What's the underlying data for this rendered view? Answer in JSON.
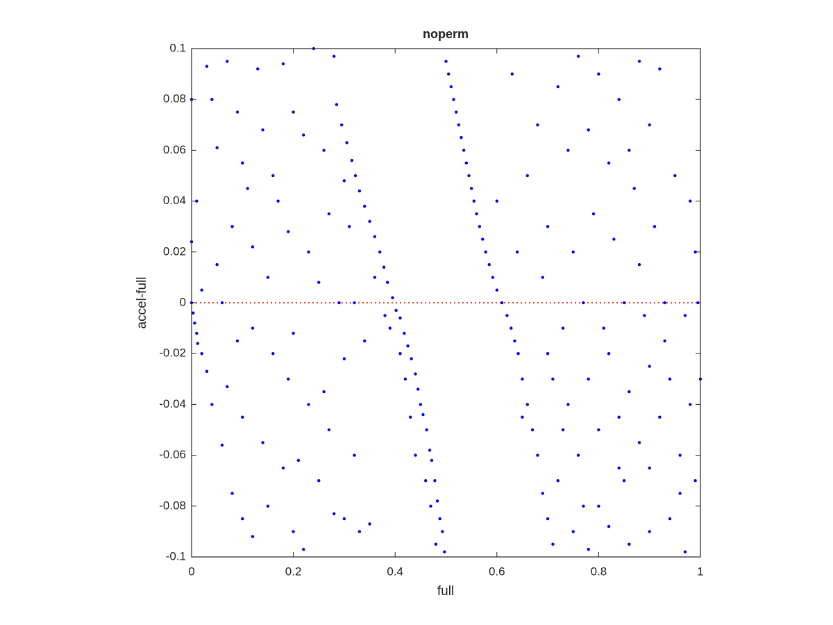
{
  "chart_data": {
    "type": "scatter",
    "title": "noperm",
    "xlabel": "full",
    "ylabel": "accel-full",
    "color": "#0000ee",
    "reference_line": {
      "y": 0,
      "color": "#e8402c"
    },
    "xlim": [
      0,
      1
    ],
    "ylim": [
      -0.1,
      0.1
    ],
    "xticks": [
      0,
      0.2,
      0.4,
      0.6,
      0.8,
      1
    ],
    "yticks": [
      -0.1,
      -0.08,
      -0.06,
      -0.04,
      -0.02,
      0,
      0.02,
      0.04,
      0.06,
      0.08,
      0.1
    ],
    "x": [
      0.497,
      0.493,
      0.488,
      0.483,
      0.478,
      0.472,
      0.468,
      0.462,
      0.455,
      0.45,
      0.445,
      0.44,
      0.432,
      0.425,
      0.418,
      0.41,
      0.402,
      0.395,
      0.385,
      0.378,
      0.37,
      0.36,
      0.35,
      0.34,
      0.33,
      0.322,
      0.315,
      0.305,
      0.295,
      0.285,
      0.48,
      0.47,
      0.46,
      0.44,
      0.43,
      0.42,
      0.41,
      0.39,
      0.38,
      0.36,
      0.02,
      0.03,
      0.04,
      0.06,
      0.08,
      0.1,
      0.12,
      0.15,
      0.18,
      0.2,
      0.22,
      0.25,
      0.28,
      0.3,
      0.33,
      0.35,
      0.32,
      0.27,
      0.23,
      0.19,
      0.16,
      0.12,
      0.09,
      0.07,
      0.1,
      0.14,
      0.21,
      0.26,
      0.3,
      0.34,
      0.01,
      0.03,
      0.04,
      0.05,
      0.07,
      0.09,
      0.11,
      0.13,
      0.16,
      0.18,
      0.2,
      0.22,
      0.24,
      0.26,
      0.28,
      0.3,
      0.31,
      0.27,
      0.23,
      0.19,
      0.15,
      0.12,
      0.08,
      0.05,
      0.02,
      0.06,
      0.1,
      0.14,
      0.17,
      0.25,
      0,
      0.003,
      0.006,
      0.01,
      0,
      0,
      0.012,
      0.29,
      0.32,
      0.2,
      0.5,
      0.505,
      0.51,
      0.515,
      0.52,
      0.525,
      0.53,
      0.535,
      0.54,
      0.545,
      0.55,
      0.555,
      0.56,
      0.566,
      0.572,
      0.578,
      0.585,
      0.592,
      0.6,
      0.61,
      0.62,
      0.628,
      0.635,
      0.642,
      0.65,
      0.66,
      0.67,
      0.68,
      0.69,
      0.7,
      0.71,
      0.75,
      0.78,
      0.82,
      0.86,
      0.9,
      0.94,
      0.97,
      0.99,
      0.72,
      0.76,
      0.8,
      0.84,
      0.88,
      0.92,
      0.96,
      0.74,
      0.78,
      0.82,
      0.86,
      0.9,
      0.94,
      0.98,
      1,
      0.7,
      0.73,
      0.77,
      0.81,
      0.85,
      0.89,
      0.93,
      0.97,
      0.995,
      0.99,
      0.98,
      0.95,
      0.91,
      0.87,
      0.83,
      0.79,
      0.75,
      0.7,
      0.66,
      0.68,
      0.72,
      0.76,
      0.8,
      0.84,
      0.88,
      0.92,
      0.9,
      0.86,
      0.82,
      0.78,
      0.74,
      0.63,
      0.6,
      0.64,
      0.69,
      0.73,
      0.8,
      0.84,
      0.9,
      0.96,
      0.85,
      0.77,
      0.93,
      0.65,
      0.71,
      0.88
    ],
    "y": [
      -0.098,
      -0.09,
      -0.085,
      -0.078,
      -0.07,
      -0.062,
      -0.058,
      -0.05,
      -0.044,
      -0.04,
      -0.034,
      -0.028,
      -0.022,
      -0.017,
      -0.012,
      -0.006,
      -0.003,
      0.002,
      0.008,
      0.014,
      0.02,
      0.026,
      0.032,
      0.038,
      0.044,
      0.05,
      0.056,
      0.063,
      0.07,
      0.078,
      -0.095,
      -0.08,
      -0.07,
      -0.06,
      -0.045,
      -0.03,
      -0.02,
      -0.01,
      -0.005,
      0.01,
      -0.02,
      -0.027,
      -0.04,
      -0.056,
      -0.075,
      -0.085,
      -0.092,
      -0.08,
      -0.065,
      -0.09,
      -0.097,
      -0.07,
      -0.083,
      -0.085,
      -0.09,
      -0.087,
      -0.06,
      -0.05,
      -0.04,
      -0.03,
      -0.02,
      -0.01,
      -0.015,
      -0.033,
      -0.045,
      -0.055,
      -0.062,
      -0.035,
      -0.022,
      -0.015,
      0.04,
      0.093,
      0.08,
      0.061,
      0.095,
      0.075,
      0.045,
      0.092,
      0.05,
      0.094,
      0.075,
      0.066,
      0.1,
      0.06,
      0.097,
      0.048,
      0.03,
      0.035,
      0.02,
      0.028,
      0.01,
      0.022,
      0.03,
      0.015,
      0.005,
      0,
      0.055,
      0.068,
      0.04,
      0.008,
      0,
      -0.004,
      -0.008,
      -0.012,
      0.08,
      0.024,
      -0.016,
      0,
      0,
      -0.012,
      0.095,
      0.09,
      0.085,
      0.08,
      0.075,
      0.07,
      0.065,
      0.06,
      0.055,
      0.05,
      0.045,
      0.04,
      0.035,
      0.03,
      0.025,
      0.02,
      0.015,
      0.01,
      0.005,
      0,
      -0.005,
      -0.01,
      -0.015,
      -0.02,
      -0.03,
      -0.04,
      -0.05,
      -0.06,
      -0.075,
      -0.085,
      -0.095,
      -0.09,
      -0.097,
      -0.088,
      -0.095,
      -0.09,
      -0.085,
      -0.098,
      -0.07,
      -0.07,
      -0.06,
      -0.05,
      -0.065,
      -0.055,
      -0.045,
      -0.06,
      -0.04,
      -0.03,
      -0.02,
      -0.035,
      -0.025,
      -0.03,
      -0.04,
      -0.03,
      -0.02,
      -0.01,
      0,
      -0.01,
      0,
      -0.005,
      0,
      -0.005,
      0,
      0.02,
      0.04,
      0.05,
      0.03,
      0.045,
      0.025,
      0.035,
      0.02,
      0.03,
      0.05,
      0.07,
      0.085,
      0.097,
      0.09,
      0.08,
      0.095,
      0.092,
      0.07,
      0.06,
      0.055,
      0.068,
      0.06,
      0.09,
      0.04,
      0.02,
      0.01,
      -0.05,
      -0.08,
      -0.045,
      -0.065,
      -0.075,
      -0.07,
      -0.08,
      -0.015,
      -0.045,
      -0.03,
      0.015
    ]
  }
}
